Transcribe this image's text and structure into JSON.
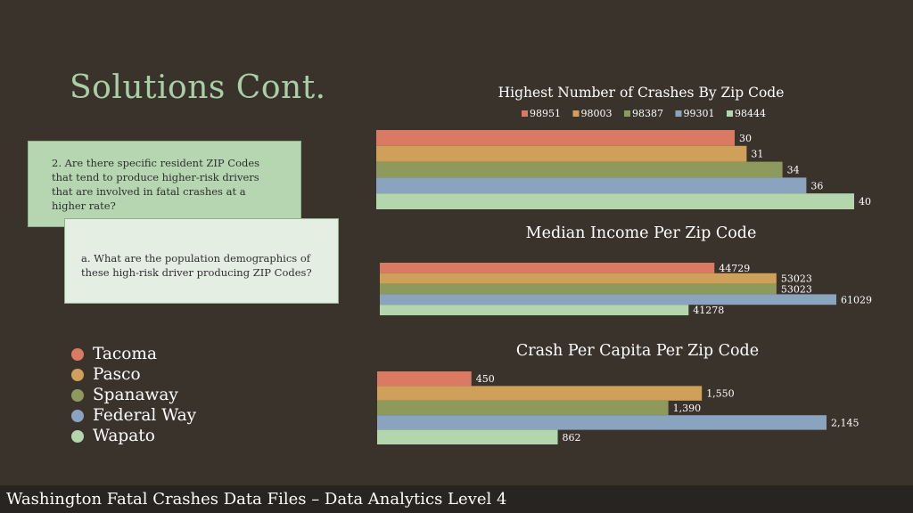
{
  "slide": {
    "title": "Solutions Cont.",
    "question_main": "2.  Are there specific resident ZIP Codes that tend to produce higher-risk drivers that are involved in fatal crashes at a higher rate?",
    "question_sub": "a.  What are the population demographics of these high-risk driver producing ZIP Codes?",
    "footer": "Washington Fatal Crashes Data Files – Data Analytics Level 4"
  },
  "city_legend": [
    {
      "label": "Tacoma",
      "color": "#db7a63"
    },
    {
      "label": "Pasco",
      "color": "#cfa05a"
    },
    {
      "label": "Spanaway",
      "color": "#8e9a5c"
    },
    {
      "label": "Federal Way",
      "color": "#8aa4bf"
    },
    {
      "label": "Wapato",
      "color": "#b3d6ad"
    }
  ],
  "chart_data": [
    {
      "type": "bar",
      "orientation": "horizontal",
      "title": "Highest Number of Crashes By Zip Code",
      "legend_position": "top",
      "series": [
        {
          "name": "98951",
          "value": 30,
          "label": "30",
          "color": "#db7a63"
        },
        {
          "name": "98003",
          "value": 31,
          "label": "31",
          "color": "#cfa05a"
        },
        {
          "name": "98387",
          "value": 34,
          "label": "34",
          "color": "#8e9a5c"
        },
        {
          "name": "99301",
          "value": 36,
          "label": "36",
          "color": "#8aa4bf"
        },
        {
          "name": "98444",
          "value": 40,
          "label": "40",
          "color": "#b3d6ad"
        }
      ],
      "xlim": [
        0,
        40
      ],
      "grid": false
    },
    {
      "type": "bar",
      "orientation": "horizontal",
      "title": "Median Income Per Zip Code",
      "series": [
        {
          "value": 44729,
          "label": "44729",
          "color": "#db7a63"
        },
        {
          "value": 53023,
          "label": "53023",
          "color": "#cfa05a"
        },
        {
          "value": 53023,
          "label": "53023",
          "color": "#8e9a5c"
        },
        {
          "value": 61029,
          "label": "61029",
          "color": "#8aa4bf"
        },
        {
          "value": 41278,
          "label": "41278",
          "color": "#b3d6ad"
        }
      ],
      "xlim": [
        0,
        61029
      ],
      "grid": false
    },
    {
      "type": "bar",
      "orientation": "horizontal",
      "title": "Crash Per Capita Per Zip Code",
      "series": [
        {
          "value": 450,
          "label": "450",
          "color": "#db7a63"
        },
        {
          "value": 1550,
          "label": "1,550",
          "color": "#cfa05a"
        },
        {
          "value": 1390,
          "label": "1,390",
          "color": "#8e9a5c"
        },
        {
          "value": 2145,
          "label": "2,145",
          "color": "#8aa4bf"
        },
        {
          "value": 862,
          "label": "862",
          "color": "#b3d6ad"
        }
      ],
      "xlim": [
        0,
        2145
      ],
      "grid": false
    }
  ]
}
